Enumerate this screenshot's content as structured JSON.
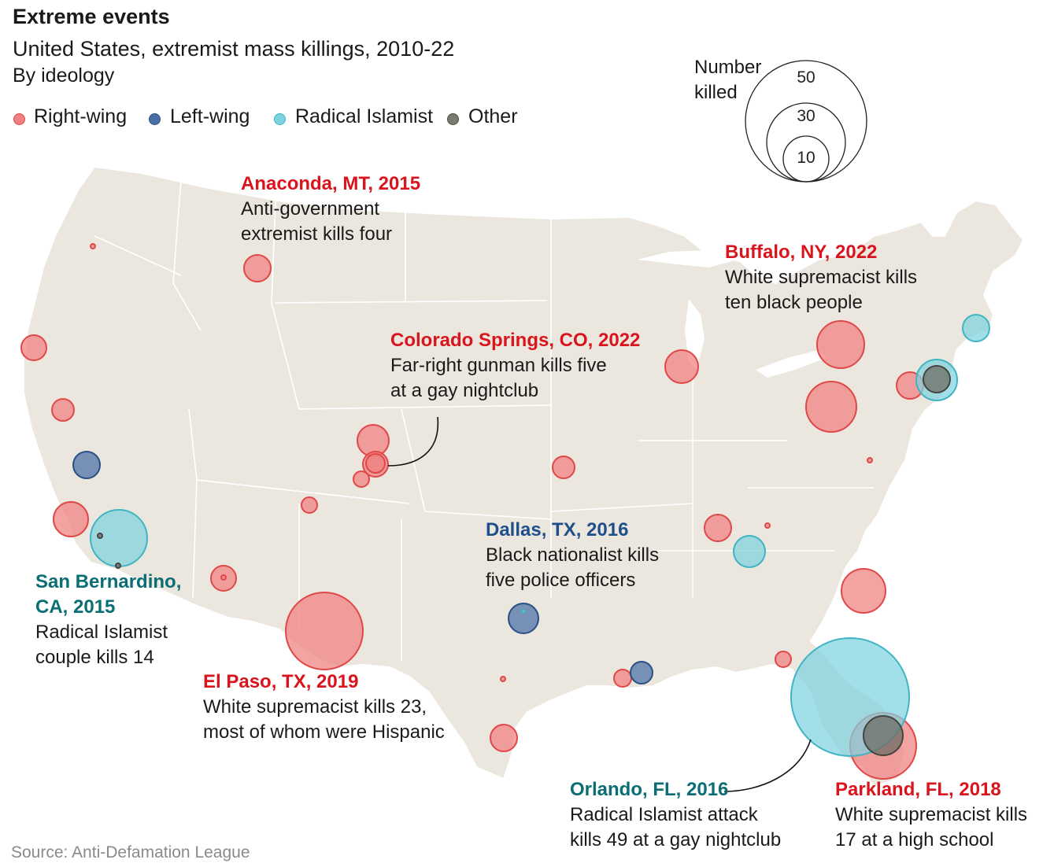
{
  "title": "Extreme events",
  "subtitle": "United States, extremist mass killings, 2010-22",
  "subsubtitle": "By ideology",
  "legend": [
    {
      "label": "Right-wing",
      "color": "#f08080"
    },
    {
      "label": "Left-wing",
      "color": "#4a6fa5"
    },
    {
      "label": "Radical Islamist",
      "color": "#7fd3df"
    },
    {
      "label": "Other",
      "color": "#7a7a70"
    }
  ],
  "size_key": {
    "label": "Number\nkilled",
    "values": [
      "50",
      "30",
      "10"
    ]
  },
  "colors": {
    "map_fill": "#ebe7df",
    "right_wing": "#f08080",
    "left_wing": "#4a6fa5",
    "islamist": "#7fd3df",
    "other": "#6e6e66",
    "annotation_red": "#d9141c",
    "annotation_blue": "#1f4f8b",
    "annotation_teal": "#0b6e74"
  },
  "annotations": [
    {
      "id": "anaconda",
      "head": "Anaconda, MT, 2015",
      "body": [
        "Anti-government",
        "extremist kills four"
      ]
    },
    {
      "id": "buffalo",
      "head": "Buffalo, NY, 2022",
      "body": [
        "White supremacist kills",
        "ten black people"
      ]
    },
    {
      "id": "colorado",
      "head": "Colorado Springs, CO, 2022",
      "body": [
        "Far-right gunman kills five",
        "at a gay nightclub"
      ]
    },
    {
      "id": "dallas",
      "head": "Dallas, TX, 2016",
      "body": [
        "Black nationalist kills",
        "five police officers"
      ]
    },
    {
      "id": "sanbernardino",
      "head": "San Bernardino,\nCA, 2015",
      "body": [
        "Radical Islamist",
        "couple kills 14"
      ]
    },
    {
      "id": "elpaso",
      "head": "El Paso, TX, 2019",
      "body": [
        "White supremacist kills 23,",
        "most of whom were Hispanic"
      ]
    },
    {
      "id": "orlando",
      "head": "Orlando, FL, 2016",
      "body": [
        "Radical Islamist attack",
        "kills 49 at a gay nightclub"
      ]
    },
    {
      "id": "parkland",
      "head": "Parkland, FL, 2018",
      "body": [
        "White supremacist kills",
        "17 at a high school"
      ]
    }
  ],
  "source": "Source: Anti-Defamation League"
}
